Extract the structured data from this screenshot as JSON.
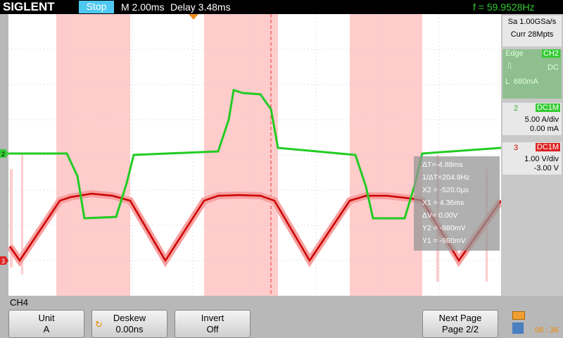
{
  "header": {
    "brand": "SIGLENT",
    "status": "Stop",
    "timebase": "M 2.00ms",
    "delay": "Delay 3.48ms",
    "frequency": "f = 59.9528Hz"
  },
  "side_panel": {
    "sample_rate": "Sa 1.00GSa/s",
    "memory": "Curr 28Mpts",
    "trigger": {
      "type": "Edge",
      "source": "CH2",
      "coupling": "DC",
      "level": "L  680mA"
    },
    "channels": [
      {
        "number": "2",
        "impedance": "DC1M",
        "scale": "5.00 A/div",
        "offset": "0.00 mA"
      },
      {
        "number": "3",
        "impedance": "DC1M",
        "scale": "1.00 V/div",
        "offset": "-3.00 V"
      }
    ]
  },
  "cursors": [
    "ΔT=-4.88ms",
    "1/ΔT=204.9Hz",
    "X2 = -520.0μs",
    "X1 = 4.36ms",
    "ΔV= 0.00V",
    "Y2 = -980mV",
    "Y1 = -980mV"
  ],
  "channel_markers": [
    "2",
    "3"
  ],
  "menu_title": "CH4",
  "menu": [
    {
      "label": "Unit",
      "value": "A"
    },
    {
      "label": "Deskew",
      "value": "0.00ns"
    },
    {
      "label": "Invert",
      "value": "Off"
    },
    {
      "label": "Next Page",
      "value": "Page 2/2"
    }
  ],
  "clock": "08 : 36"
}
